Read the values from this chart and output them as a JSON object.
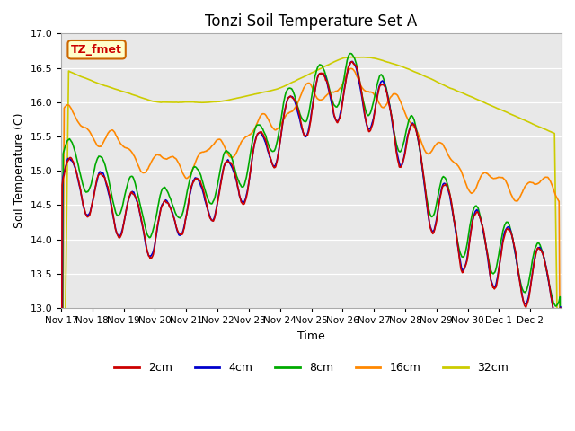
{
  "title": "Tonzi Soil Temperature Set A",
  "ylabel": "Soil Temperature (C)",
  "xlabel": "Time",
  "ylim": [
    13.0,
    17.0
  ],
  "yticks": [
    13.0,
    13.5,
    14.0,
    14.5,
    15.0,
    15.5,
    16.0,
    16.5,
    17.0
  ],
  "xtick_labels": [
    "Nov 17",
    "Nov 18",
    "Nov 19",
    "Nov 20",
    "Nov 21",
    "Nov 22",
    "Nov 23",
    "Nov 24",
    "Nov 25",
    "Nov 26",
    "Nov 27",
    "Nov 28",
    "Nov 29",
    "Nov 30",
    "Dec 1",
    "Dec 2"
  ],
  "colors": {
    "2cm": "#cc0000",
    "4cm": "#0000cc",
    "8cm": "#00aa00",
    "16cm": "#ff8800",
    "32cm": "#cccc00"
  },
  "annotation_text": "TZ_fmet",
  "annotation_bg": "#ffffcc",
  "annotation_border": "#cc6600",
  "bg_color": "#e8e8e8",
  "n_points": 1000
}
